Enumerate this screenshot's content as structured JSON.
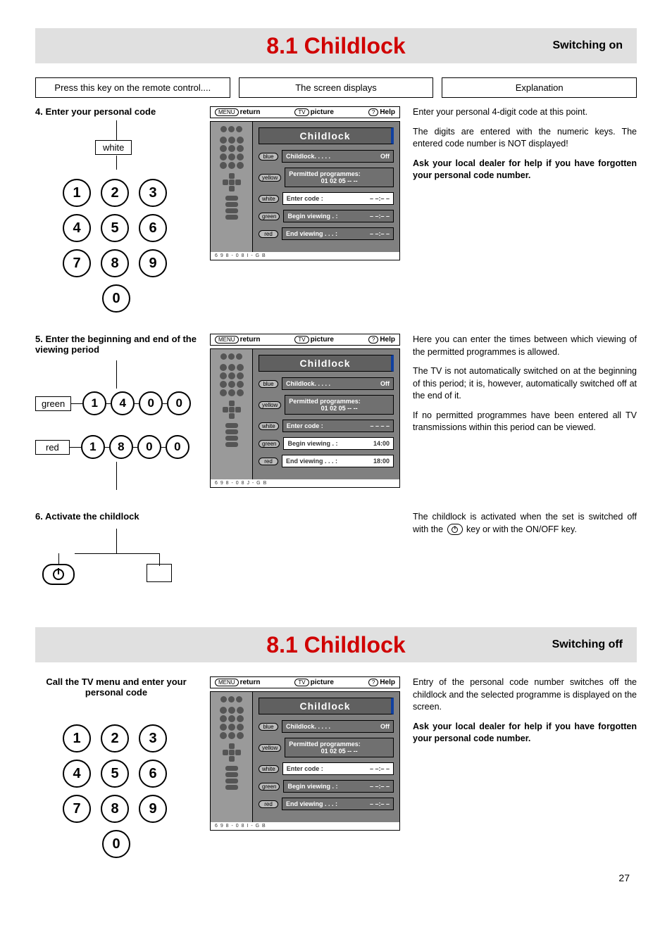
{
  "pageNumber": "27",
  "section1": {
    "title": "8.1 Childlock",
    "subtitle": "Switching on",
    "colHeaders": [
      "Press this key on the remote control....",
      "The screen displays",
      "Explanation"
    ],
    "step4": {
      "title": "4. Enter your personal code",
      "whiteLabel": "white",
      "keys": [
        "1",
        "2",
        "3",
        "4",
        "5",
        "6",
        "7",
        "8",
        "9",
        "0"
      ]
    },
    "step4osd": {
      "topbar": {
        "return": "return",
        "picture": "picture",
        "help": "Help",
        "menuChip": "MENU",
        "tvChip": "TV",
        "helpChip": "?"
      },
      "title": "Childlock",
      "rows": [
        {
          "chip": "blue",
          "left": "Childlock. . . . .",
          "right": "Off",
          "sel": false,
          "multi": false
        },
        {
          "chip": "yellow",
          "left": "Permitted programmes:",
          "right": "01  02  05  --  --",
          "sel": false,
          "multi": true
        },
        {
          "chip": "white",
          "left": "Enter code  :",
          "right": "– –:– –",
          "sel": true,
          "multi": false
        },
        {
          "chip": "green",
          "left": "Begin viewing . :",
          "right": "– –:– –",
          "sel": false,
          "multi": false
        },
        {
          "chip": "red",
          "left": "End viewing . . . :",
          "right": "– –:– –",
          "sel": false,
          "multi": false
        }
      ],
      "footer": "6 9 8 - 0 8 I - G B"
    },
    "step4expl": [
      {
        "t": "Enter your personal 4-digit code at this point.",
        "b": false
      },
      {
        "t": "The digits are entered with the numeric keys. The entered code number is NOT displayed!",
        "b": false
      },
      {
        "t": "Ask your local dealer for help if you have forgotten your personal code number.",
        "b": true
      }
    ],
    "step5": {
      "title": "5. Enter the beginning and end of the viewing period",
      "greenLabel": "green",
      "greenCode": [
        "1",
        "4",
        "0",
        "0"
      ],
      "redLabel": "red",
      "redCode": [
        "1",
        "8",
        "0",
        "0"
      ]
    },
    "step5osd": {
      "topbar": {
        "return": "return",
        "picture": "picture",
        "help": "Help",
        "menuChip": "MENU",
        "tvChip": "TV",
        "helpChip": "?"
      },
      "title": "Childlock",
      "rows": [
        {
          "chip": "blue",
          "left": "Childlock. . . . .",
          "right": "Off",
          "sel": false,
          "multi": false
        },
        {
          "chip": "yellow",
          "left": "Permitted programmes:",
          "right": "01  02  05  --  --",
          "sel": false,
          "multi": true
        },
        {
          "chip": "white",
          "left": "Enter code  :",
          "right": "– – – –",
          "sel": false,
          "multi": false
        },
        {
          "chip": "green",
          "left": "Begin viewing . :",
          "right": "14:00",
          "sel": true,
          "multi": false
        },
        {
          "chip": "red",
          "left": "End viewing . . . :",
          "right": "18:00",
          "sel": true,
          "multi": false
        }
      ],
      "footer": "6 9 8 - 0 8 J - G B"
    },
    "step5expl": [
      {
        "t": "Here you can enter the times between which viewing of the permitted programmes is allowed.",
        "b": false
      },
      {
        "t": "The TV is not automatically switched on at the beginning of this period; it is, however, automatically switched off at the end of it.",
        "b": false
      },
      {
        "t": "If no permitted programmes have been entered all TV transmissions within this period can be viewed.",
        "b": false
      }
    ],
    "step6": {
      "title": "6. Activate the childlock"
    },
    "step6expl_pre": "The childlock is activated when the set is switched off with the ",
    "step6expl_post": " key or with the ON/OFF key."
  },
  "section2": {
    "title": "8.1 Childlock",
    "subtitle": "Switching off",
    "stepCall": {
      "title": "Call the TV menu and enter your personal code",
      "keys": [
        "1",
        "2",
        "3",
        "4",
        "5",
        "6",
        "7",
        "8",
        "9",
        "0"
      ]
    },
    "osd": {
      "topbar": {
        "return": "return",
        "picture": "picture",
        "help": "Help",
        "menuChip": "MENU",
        "tvChip": "TV",
        "helpChip": "?"
      },
      "title": "Childlock",
      "rows": [
        {
          "chip": "blue",
          "left": "Childlock. . . . .",
          "right": "Off",
          "sel": false,
          "multi": false
        },
        {
          "chip": "yellow",
          "left": "Permitted programmes:",
          "right": "01  02  05  --  --",
          "sel": false,
          "multi": true
        },
        {
          "chip": "white",
          "left": "Enter code  :",
          "right": "– –:– –",
          "sel": true,
          "multi": false
        },
        {
          "chip": "green",
          "left": "Begin viewing . :",
          "right": "– –:– –",
          "sel": false,
          "multi": false
        },
        {
          "chip": "red",
          "left": "End viewing . . . :",
          "right": "– –:– –",
          "sel": false,
          "multi": false
        }
      ],
      "footer": "6 9 8 - 0 8 I - G B"
    },
    "expl": [
      {
        "t": "Entry of the personal code number switches off the childlock and the selected programme is displayed on the screen.",
        "b": false
      },
      {
        "t": "Ask your local dealer for help if you have forgotten your personal code number.",
        "b": true
      }
    ]
  }
}
